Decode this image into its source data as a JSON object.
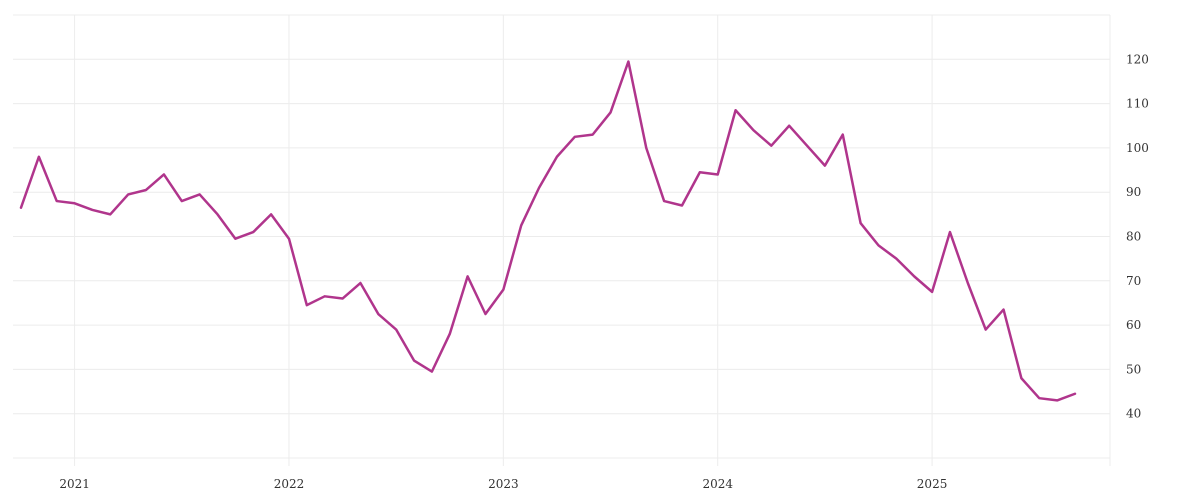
{
  "chart_data": {
    "type": "line",
    "title": "",
    "xlabel": "",
    "ylabel": "",
    "x_ticks": [
      "2021",
      "2022",
      "2023",
      "2024",
      "2025"
    ],
    "y_ticks": [
      40,
      50,
      60,
      70,
      80,
      90,
      100,
      110,
      120
    ],
    "xlim": [
      "2020-10",
      "2025-09"
    ],
    "ylim": [
      30,
      130
    ],
    "grid": true,
    "y_axis_position": "right",
    "colors": {
      "line": "#b0358c",
      "grid": "#ececec"
    },
    "series": [
      {
        "x": [
          "2020-10",
          "2020-11",
          "2020-12",
          "2021-01",
          "2021-02",
          "2021-03",
          "2021-04",
          "2021-05",
          "2021-06",
          "2021-07",
          "2021-08",
          "2021-09",
          "2021-10",
          "2021-11",
          "2021-12",
          "2022-01",
          "2022-02",
          "2022-03",
          "2022-04",
          "2022-05",
          "2022-06",
          "2022-07",
          "2022-08",
          "2022-09",
          "2022-10",
          "2022-11",
          "2022-12",
          "2023-01",
          "2023-02",
          "2023-03",
          "2023-04",
          "2023-05",
          "2023-06",
          "2023-07",
          "2023-08",
          "2023-09",
          "2023-10",
          "2023-11",
          "2023-12",
          "2024-01",
          "2024-02",
          "2024-03",
          "2024-04",
          "2024-05",
          "2024-06",
          "2024-07",
          "2024-08",
          "2024-09",
          "2024-10",
          "2024-11",
          "2024-12",
          "2025-01",
          "2025-02",
          "2025-03",
          "2025-04",
          "2025-05",
          "2025-06",
          "2025-07",
          "2025-08",
          "2025-09"
        ],
        "values": [
          86.5,
          98,
          88,
          87.5,
          86,
          85,
          89.5,
          90.5,
          94,
          88,
          89.5,
          85,
          79.5,
          81,
          85,
          79.5,
          64.5,
          66.5,
          66,
          69.5,
          62.5,
          59,
          52,
          49.5,
          58,
          71,
          62.5,
          68,
          82.5,
          91,
          98,
          102.5,
          103,
          108,
          119.5,
          100,
          88,
          87,
          94.5,
          94,
          108.5,
          104,
          100.5,
          105,
          100.5,
          96,
          103,
          83,
          78,
          75,
          71,
          67.5,
          81,
          69.5,
          59,
          63.5,
          48,
          43.5,
          43,
          44.5
        ]
      }
    ]
  }
}
